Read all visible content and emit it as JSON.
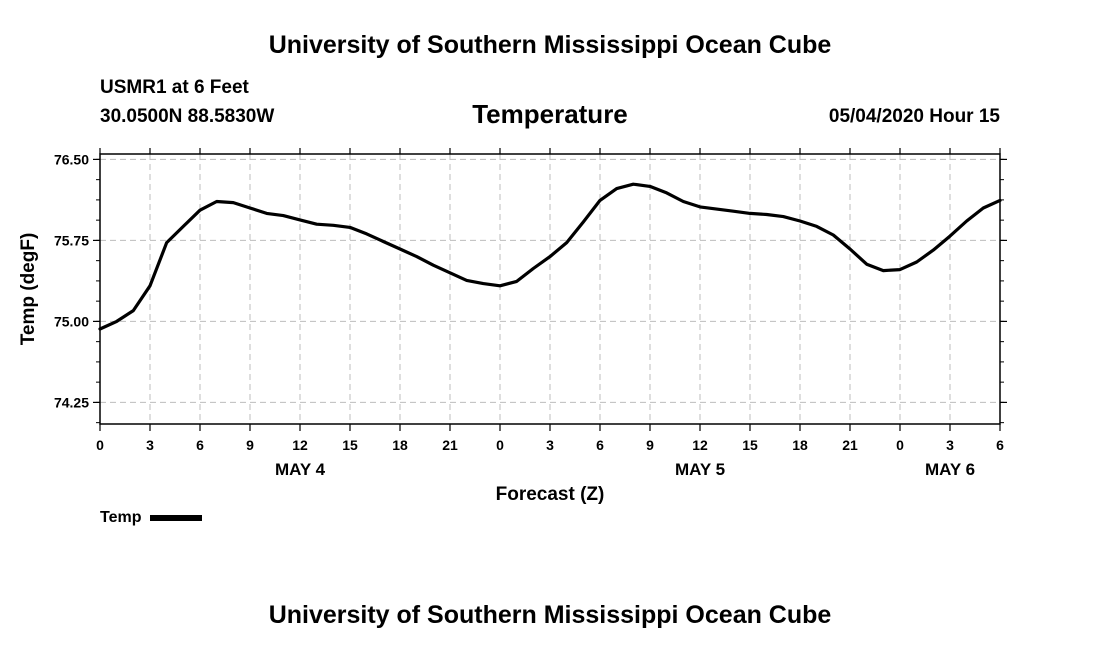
{
  "header": {
    "title_top": "University of Southern Mississippi Ocean Cube",
    "station": "USMR1 at 6 Feet",
    "coords": "30.0500N 88.5830W",
    "variable": "Temperature",
    "datetime": "05/04/2020 Hour 15"
  },
  "footer": {
    "title_bottom": "University of Southern Mississippi Ocean Cube"
  },
  "legend": {
    "label": "Temp",
    "color": "#000000"
  },
  "chart_data": {
    "type": "line",
    "title": "Temperature",
    "xlabel": "Forecast (Z)",
    "ylabel": "Temp (degF)",
    "xlim": [
      0,
      54
    ],
    "ylim": [
      74.05,
      76.55
    ],
    "grid": true,
    "x_tick_values": [
      0,
      3,
      6,
      9,
      12,
      15,
      18,
      21,
      24,
      27,
      30,
      33,
      36,
      39,
      42,
      45,
      48,
      51,
      54
    ],
    "x_tick_labels": [
      "0",
      "3",
      "6",
      "9",
      "12",
      "15",
      "18",
      "21",
      "0",
      "3",
      "6",
      "9",
      "12",
      "15",
      "18",
      "21",
      "0",
      "3",
      "6"
    ],
    "date_labels": [
      {
        "x": 12,
        "label": "MAY 4"
      },
      {
        "x": 36,
        "label": "MAY 5"
      },
      {
        "x": 51,
        "label": "MAY 6"
      }
    ],
    "y_tick_values": [
      74.25,
      75.0,
      75.75,
      76.5
    ],
    "y_tick_labels": [
      "74.25",
      "75.00",
      "75.75",
      "76.50"
    ],
    "series": [
      {
        "name": "Temp",
        "x": [
          0,
          1,
          2,
          3,
          4,
          5,
          6,
          7,
          8,
          9,
          10,
          11,
          12,
          13,
          14,
          15,
          16,
          17,
          18,
          19,
          20,
          21,
          22,
          23,
          24,
          25,
          26,
          27,
          28,
          29,
          30,
          31,
          32,
          33,
          34,
          35,
          36,
          37,
          38,
          39,
          40,
          41,
          42,
          43,
          44,
          45,
          46,
          47,
          48,
          49,
          50,
          51,
          52,
          53,
          54
        ],
        "values": [
          74.93,
          75.0,
          75.1,
          75.33,
          75.73,
          75.88,
          76.03,
          76.11,
          76.1,
          76.05,
          76.0,
          75.98,
          75.94,
          75.9,
          75.89,
          75.87,
          75.81,
          75.74,
          75.67,
          75.6,
          75.52,
          75.45,
          75.38,
          75.35,
          75.33,
          75.37,
          75.49,
          75.6,
          75.73,
          75.92,
          76.12,
          76.23,
          76.27,
          76.25,
          76.19,
          76.11,
          76.06,
          76.04,
          76.02,
          76.0,
          75.99,
          75.97,
          75.93,
          75.88,
          75.8,
          75.67,
          75.53,
          75.47,
          75.48,
          75.55,
          75.66,
          75.79,
          75.93,
          76.05,
          76.12
        ]
      }
    ]
  }
}
